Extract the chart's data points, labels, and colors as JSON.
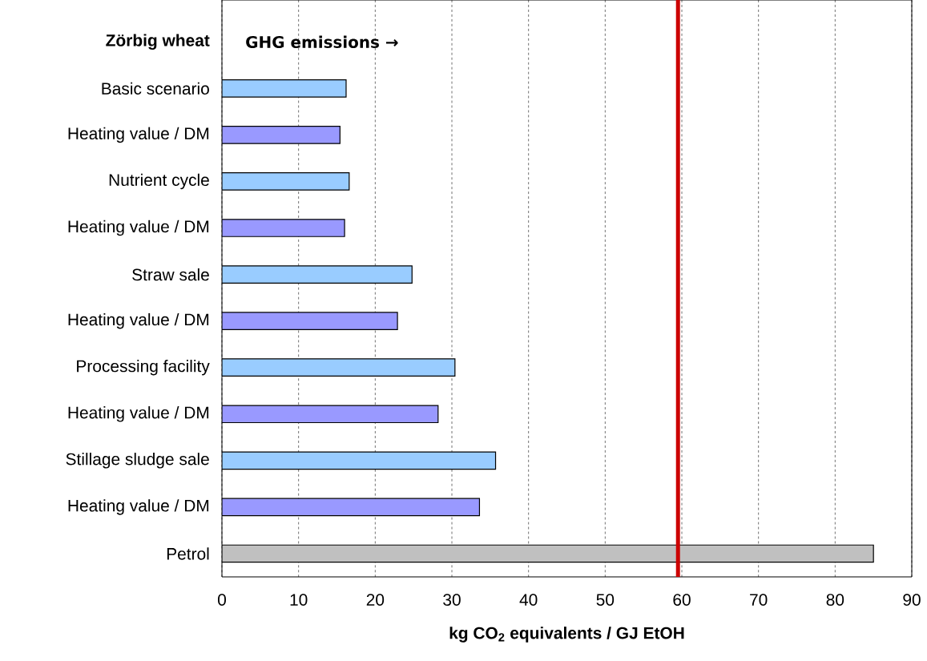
{
  "chart_data": {
    "type": "bar",
    "orientation": "horizontal",
    "categories": [
      "Zörbig wheat",
      "Basic scenario",
      "Heating value / DM",
      "Nutrient cycle",
      "Heating value / DM",
      "Straw sale",
      "Heating value / DM",
      "Processing facility",
      "Heating value / DM",
      "Stillage sludge sale",
      "Heating value / DM",
      "Petrol"
    ],
    "values": [
      null,
      16.2,
      15.4,
      16.6,
      16.0,
      24.8,
      22.9,
      30.4,
      28.2,
      35.7,
      33.6,
      85.0
    ],
    "colors": [
      "#ffffff",
      "#99ccff",
      "#9999ff",
      "#99ccff",
      "#9999ff",
      "#99ccff",
      "#9999ff",
      "#99ccff",
      "#9999ff",
      "#99ccff",
      "#9999ff",
      "#c0c0c0"
    ],
    "xlabel": "kg CO$_{2}$ equivalents / GJ EtOH",
    "annotations": [
      "GHG emissions →"
    ],
    "xlim": [
      0,
      90
    ],
    "xticks": [
      0,
      10,
      20,
      30,
      40,
      50,
      60,
      70,
      80,
      90
    ],
    "grid": "x",
    "ref_lines": [
      {
        "axis": "x",
        "value": 59.5,
        "color": "#cc0000"
      }
    ]
  }
}
